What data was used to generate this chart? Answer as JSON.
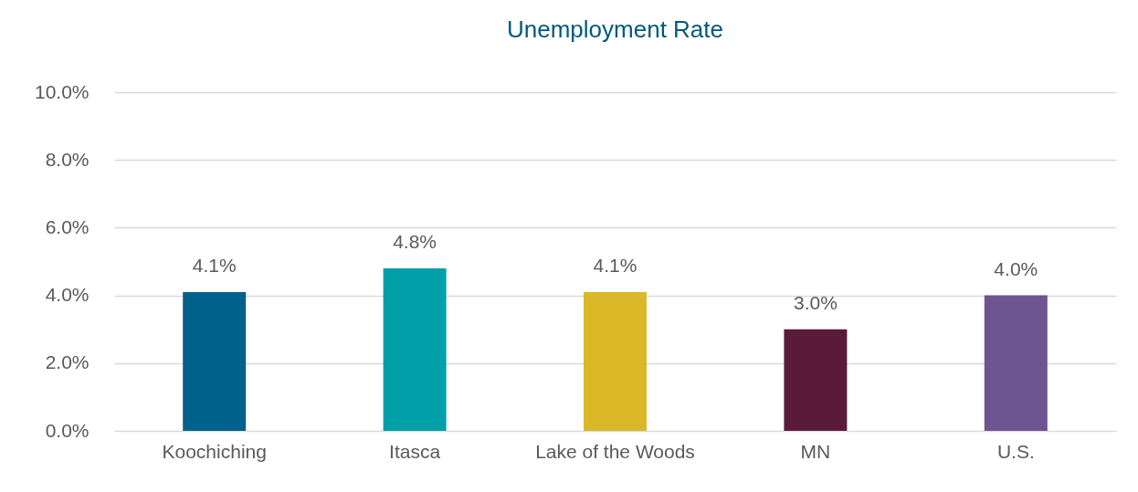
{
  "chart_data": {
    "type": "bar",
    "title": "Unemployment Rate",
    "categories": [
      "Koochiching",
      "Itasca",
      "Lake of the Woods",
      "MN",
      "U.S."
    ],
    "values": [
      4.1,
      4.8,
      4.1,
      3.0,
      4.0
    ],
    "colors": [
      "#00618a",
      "#00a0a8",
      "#dbb828",
      "#5a1a3a",
      "#6d5492"
    ],
    "value_labels": [
      "4.1%",
      "4.8%",
      "4.1%",
      "3.0%",
      "4.0%"
    ],
    "ylim": [
      0,
      10
    ],
    "yticks": [
      {
        "value": 0,
        "label": "0.0%"
      },
      {
        "value": 2,
        "label": "2.0%"
      },
      {
        "value": 4,
        "label": "4.0%"
      },
      {
        "value": 6,
        "label": "6.0%"
      },
      {
        "value": 8,
        "label": "8.0%"
      },
      {
        "value": 10,
        "label": "10.0%"
      }
    ],
    "grid": "y"
  }
}
